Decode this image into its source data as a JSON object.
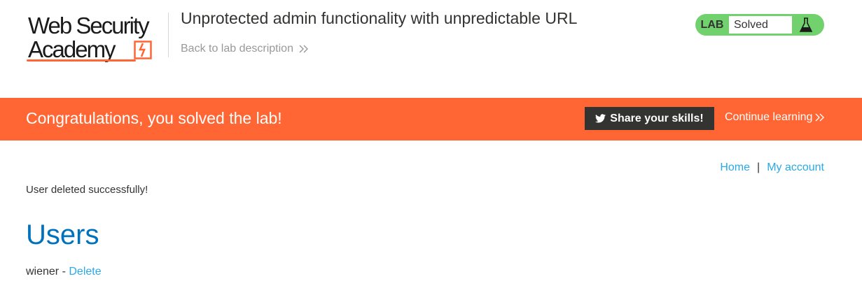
{
  "header": {
    "logo": {
      "line1": "Web Security",
      "line2": "Academy"
    },
    "lab_title": "Unprotected admin functionality with unpredictable URL",
    "back_link": "Back to lab description",
    "status": {
      "label": "LAB",
      "value": "Solved",
      "icon": "flask-icon"
    }
  },
  "banner": {
    "message": "Congratulations, you solved the lab!",
    "share_button": "Share your skills!",
    "continue_link": "Continue learning"
  },
  "nav": {
    "home": "Home",
    "separator": "|",
    "account": "My account"
  },
  "content": {
    "message": "User deleted successfully!",
    "heading": "Users",
    "users": [
      {
        "name": "wiener",
        "separator": " - ",
        "action": "Delete"
      }
    ]
  },
  "colors": {
    "accent": "#ff6633",
    "link": "#29a9e5",
    "heading": "#0071bc",
    "solved": "#70d16d",
    "dark": "#333332"
  }
}
